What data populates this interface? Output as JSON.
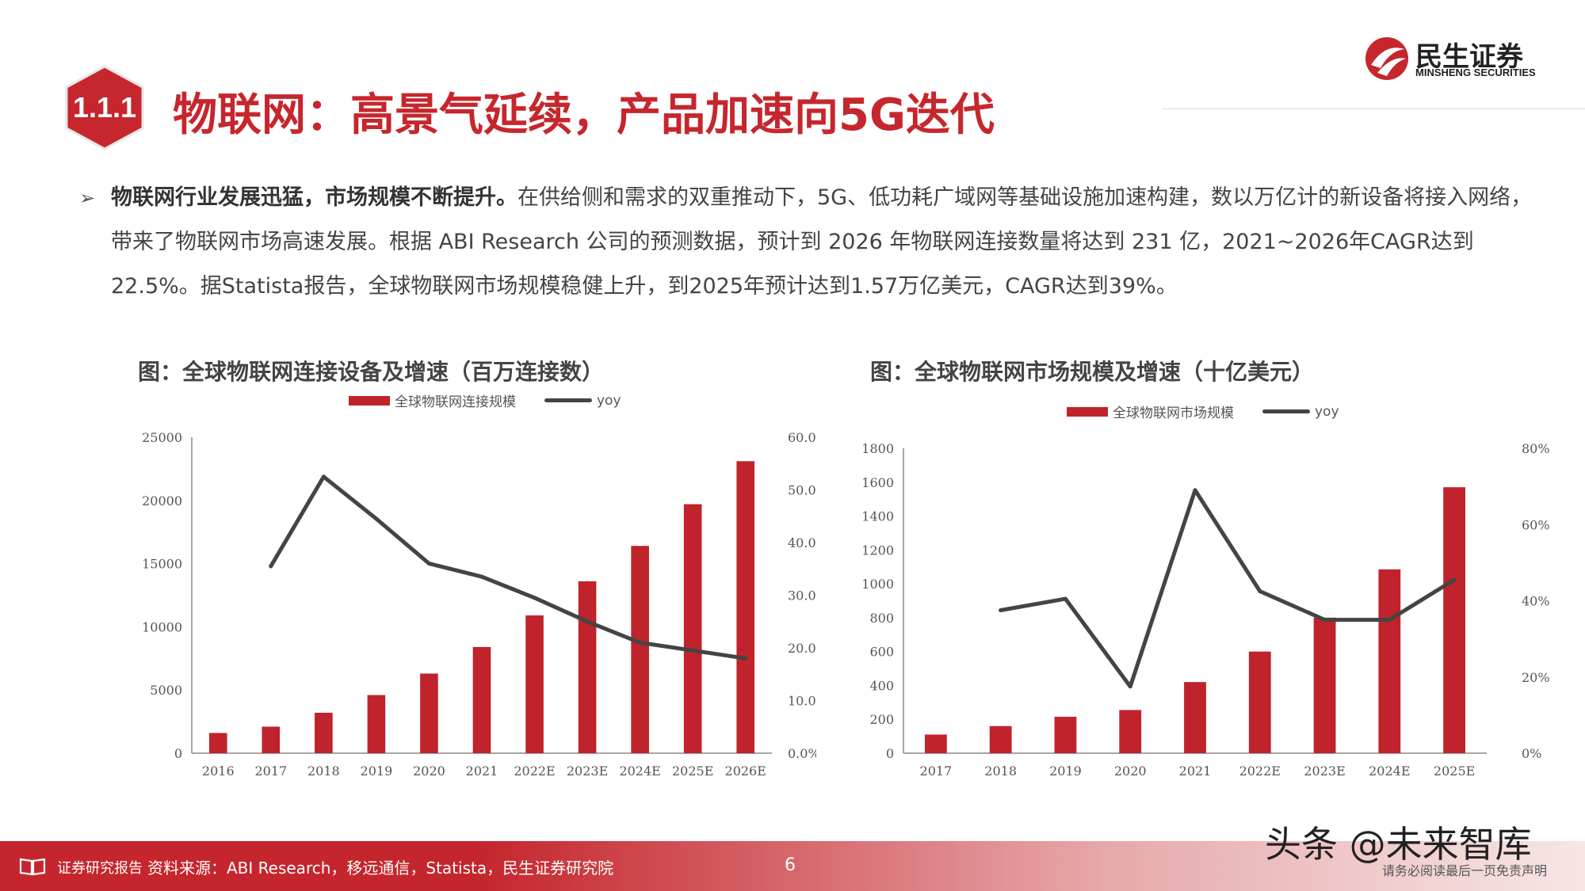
{
  "section_badge": "1.1.1",
  "title": "物联网：高景气延续，产品加速向5G迭代",
  "logo": {
    "cn": "民生证券",
    "en": "MINSHENG SECURITIES"
  },
  "paragraph": {
    "bullet": "➢",
    "lead": "物联网行业发展迅猛，市场规模不断提升。",
    "body": "在供给侧和需求的双重推动下，5G、低功耗广域网等基础设施加速构建，数以万亿计的新设备将接入网络，带来了物联网市场高速发展。根据 ABI Research 公司的预测数据，预计到 2026 年物联网连接数量将达到 231 亿，2021~2026年CAGR达到22.5%。据Statista报告，全球物联网市场规模稳健上升，到2025年预计达到1.57万亿美元，CAGR达到39%。"
  },
  "chart_data": [
    {
      "type": "bar",
      "title": "图：全球物联网连接设备及增速（百万连接数）",
      "categories": [
        "2016",
        "2017",
        "2018",
        "2019",
        "2020",
        "2021",
        "2022E",
        "2023E",
        "2024E",
        "2025E",
        "2026E"
      ],
      "series": [
        {
          "name": "全球物联网连接规模",
          "type": "bar",
          "axis": "left",
          "values": [
            1600,
            2100,
            3200,
            4600,
            6300,
            8400,
            10900,
            13600,
            16400,
            19700,
            23100
          ]
        },
        {
          "name": "yoy",
          "type": "line",
          "axis": "right",
          "values": [
            null,
            35.5,
            52.5,
            44.5,
            36.0,
            33.5,
            29.5,
            25.0,
            21.0,
            19.5,
            18.0
          ]
        }
      ],
      "left_axis": {
        "ticks": [
          "0",
          "5000",
          "10000",
          "15000",
          "20000",
          "25000"
        ],
        "min": 0,
        "max": 25000
      },
      "right_axis": {
        "ticks": [
          "0.0%",
          "10.0%",
          "20.0%",
          "30.0%",
          "40.0%",
          "50.0%",
          "60.0%"
        ],
        "min": 0,
        "max": 60
      },
      "grid": false,
      "legend_position": "top"
    },
    {
      "type": "bar",
      "title": "图：全球物联网市场规模及增速（十亿美元）",
      "categories": [
        "2017",
        "2018",
        "2019",
        "2020",
        "2021",
        "2022E",
        "2023E",
        "2024E",
        "2025E"
      ],
      "series": [
        {
          "name": "全球物联网市场规模",
          "type": "bar",
          "axis": "left",
          "values": [
            110,
            160,
            215,
            255,
            420,
            600,
            800,
            1085,
            1570
          ]
        },
        {
          "name": "yoy",
          "type": "line",
          "axis": "right",
          "values": [
            null,
            37.5,
            40.5,
            17.5,
            69.0,
            42.5,
            35.0,
            35.0,
            45.5
          ]
        }
      ],
      "left_axis": {
        "ticks": [
          "0",
          "200",
          "400",
          "600",
          "800",
          "1000",
          "1200",
          "1400",
          "1600",
          "1800"
        ],
        "min": 0,
        "max": 1800
      },
      "right_axis": {
        "ticks": [
          "0%",
          "20%",
          "40%",
          "60%",
          "80%"
        ],
        "min": 0,
        "max": 80
      },
      "grid": false,
      "legend_position": "top"
    }
  ],
  "colors": {
    "brand_red": "#c6262d",
    "bar_red": "#c0232b",
    "line_gray": "#444444"
  },
  "footer": {
    "label": "证券研究报告",
    "source": "资料来源：ABI Research，移远通信，Statista，民生证券研究院",
    "page": "6",
    "watermark": "头条 @未来智库",
    "note": "请务必阅读最后一页免责声明"
  }
}
